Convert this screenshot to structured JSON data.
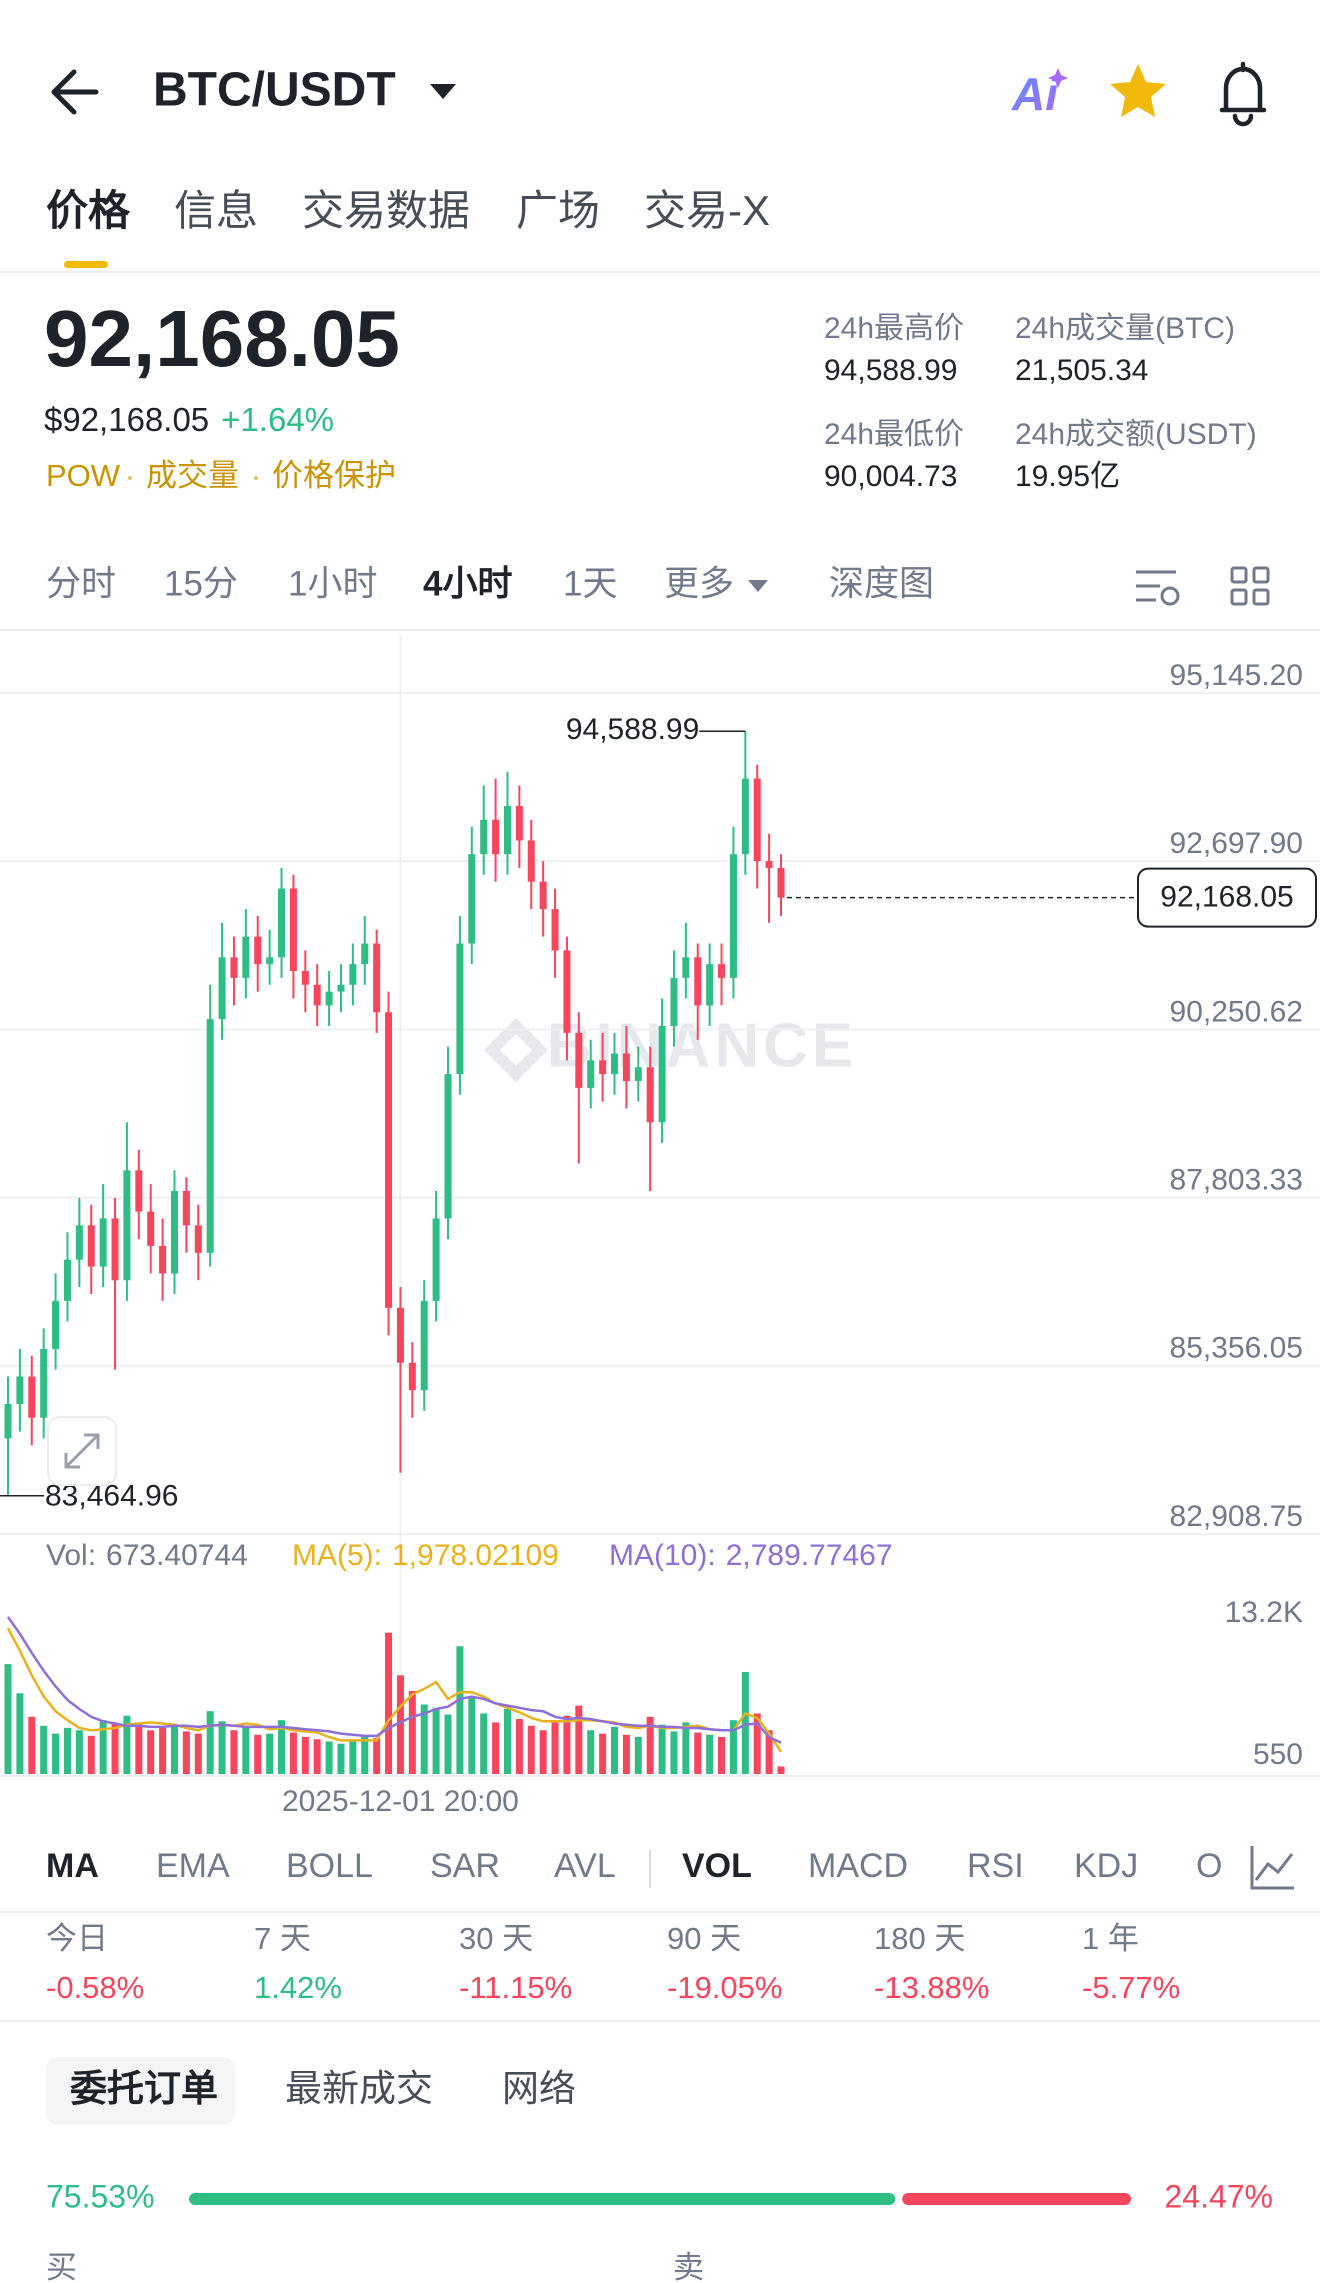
{
  "header": {
    "pair": "BTC/USDT",
    "ai": "Ai"
  },
  "tabs": [
    "价格",
    "信息",
    "交易数据",
    "广场",
    "交易-X"
  ],
  "price": {
    "last": "92,168.05",
    "usd": "$92,168.05",
    "change": "+1.64%",
    "tags": [
      "POW",
      "成交量",
      "价格保护"
    ]
  },
  "stats": [
    {
      "label": "24h最高价",
      "value": "94,588.99"
    },
    {
      "label": "24h成交量(BTC)",
      "value": "21,505.34"
    },
    {
      "label": "24h最低价",
      "value": "90,004.73"
    },
    {
      "label": "24h成交额(USDT)",
      "value": "19.95亿"
    }
  ],
  "intervals": [
    "分时",
    "15分",
    "1小时",
    "4小时",
    "1天",
    "更多"
  ],
  "depth": "深度图",
  "chart_data": [
    {
      "type": "candlestick",
      "categories": [
        null,
        null,
        null,
        null,
        null,
        null,
        null,
        null,
        null,
        null,
        null,
        null,
        null,
        null,
        null,
        null,
        null,
        null,
        null,
        null,
        null,
        null,
        null,
        null,
        null,
        null,
        null,
        null,
        null,
        null,
        null,
        null,
        null,
        "2025-12-01 20:00",
        null,
        null,
        null,
        null,
        null,
        null,
        null,
        null,
        null,
        null,
        null,
        null,
        null,
        null,
        null,
        null,
        null,
        null,
        null,
        null,
        null,
        null,
        null,
        null,
        null,
        null,
        null,
        null,
        null,
        null,
        null,
        null
      ],
      "open": [
        84300,
        84800,
        85200,
        84600,
        85600,
        86300,
        86900,
        87400,
        86800,
        87500,
        86600,
        88200,
        87600,
        87100,
        86700,
        87900,
        87400,
        87000,
        90400,
        91300,
        91000,
        91600,
        91200,
        91300,
        92300,
        91100,
        90900,
        90600,
        90800,
        90900,
        91200,
        91500,
        90500,
        86200,
        85400,
        85000,
        86300,
        87500,
        89600,
        91500,
        92800,
        93300,
        92800,
        93500,
        93000,
        92400,
        92000,
        91400,
        90200,
        89400,
        89800,
        89600,
        89900,
        89500,
        89700,
        88900,
        90300,
        91000,
        91300,
        90600,
        91200,
        91000,
        92800,
        93900,
        92700,
        92600
      ],
      "high": [
        85200,
        85600,
        85500,
        85900,
        86700,
        87300,
        87800,
        87700,
        88000,
        87800,
        88900,
        88500,
        88000,
        87500,
        88200,
        88100,
        87700,
        90900,
        91800,
        91600,
        92000,
        91900,
        91700,
        92600,
        92500,
        91400,
        91200,
        91100,
        91200,
        91500,
        91900,
        91700,
        90800,
        86500,
        85700,
        86600,
        87900,
        90000,
        91900,
        93200,
        93800,
        93900,
        94000,
        93800,
        93300,
        92700,
        92300,
        91600,
        90500,
        90100,
        90200,
        90200,
        90300,
        90000,
        90000,
        90700,
        91400,
        91800,
        91500,
        91500,
        91500,
        93200,
        94588.99,
        94100,
        93100,
        92800
      ],
      "low": [
        83464.96,
        84400,
        84200,
        84300,
        85300,
        86000,
        86500,
        86400,
        86500,
        85300,
        86300,
        87200,
        86700,
        86300,
        86400,
        87000,
        86600,
        86800,
        90100,
        90600,
        90700,
        90800,
        90900,
        91000,
        90700,
        90500,
        90300,
        90300,
        90500,
        90600,
        90900,
        90200,
        85800,
        83800,
        84600,
        84700,
        86000,
        87200,
        89300,
        91200,
        92500,
        92400,
        92500,
        92600,
        92000,
        91600,
        91000,
        89800,
        88300,
        89100,
        89200,
        89300,
        89100,
        89200,
        87900,
        88600,
        90000,
        90700,
        90100,
        90300,
        90600,
        90700,
        92500,
        92300,
        91800,
        91900
      ],
      "close": [
        84800,
        85200,
        84600,
        85600,
        86300,
        86900,
        87400,
        86800,
        87500,
        86600,
        88200,
        87600,
        87100,
        86700,
        87900,
        87400,
        87000,
        90400,
        91300,
        91000,
        91600,
        91200,
        91300,
        92300,
        91100,
        90900,
        90600,
        90800,
        90900,
        91200,
        91500,
        90500,
        86200,
        85400,
        85000,
        86300,
        87500,
        89600,
        91500,
        92800,
        93300,
        92800,
        93500,
        93000,
        92400,
        92000,
        91400,
        90200,
        89400,
        89800,
        89600,
        89900,
        89500,
        89700,
        88900,
        90300,
        91000,
        91300,
        90600,
        91200,
        91000,
        92800,
        93900,
        92700,
        92600,
        92168.05
      ],
      "colors": {
        "up": "#2EBD85",
        "down": "#F6465D"
      },
      "ylim": [
        82908.75,
        95145.2
      ],
      "yticks": [
        {
          "value": 95145.2,
          "label": "95,145.20"
        },
        {
          "value": 92697.9,
          "label": "92,697.90"
        },
        {
          "value": 90250.62,
          "label": "90,250.62"
        },
        {
          "value": 87803.33,
          "label": "87,803.33"
        },
        {
          "value": 85356.05,
          "label": "85,356.05"
        },
        {
          "value": 82908.75,
          "label": "82,908.75"
        }
      ],
      "annotations": [
        {
          "value": 94588.99,
          "label": "94,588.99"
        },
        {
          "value": 83464.96,
          "label": "83,464.96"
        }
      ],
      "last_price": {
        "value": 92168.05,
        "label": "92,168.05"
      },
      "grid": true,
      "watermark": "BINANCE"
    },
    {
      "type": "bar",
      "series": [
        {
          "name": "Vol:",
          "values": [
            9800,
            7200,
            5100,
            4300,
            3600,
            4100,
            3900,
            3400,
            4800,
            4500,
            5200,
            4600,
            3900,
            4100,
            4400,
            3800,
            3600,
            5600,
            4700,
            3900,
            4200,
            3500,
            3600,
            4800,
            3700,
            3300,
            3100,
            2900,
            2700,
            3000,
            3400,
            3200,
            12600,
            8800,
            7400,
            6200,
            5900,
            5300,
            11400,
            6800,
            5400,
            4600,
            5800,
            4900,
            4300,
            3900,
            4700,
            5200,
            6100,
            3900,
            3600,
            4200,
            3500,
            3300,
            5100,
            4400,
            3800,
            4600,
            3700,
            3500,
            3300,
            4800,
            9100,
            5400,
            3900,
            673.40744
          ],
          "latest_label": "673.40744",
          "color": "#707A8A"
        },
        {
          "name": "MA(5):",
          "type": "line",
          "color": "#E8B21E",
          "values": [
            13000,
            11000,
            8800,
            6900,
            5600,
            4800,
            4100,
            3900,
            4000,
            4100,
            4400,
            4500,
            4600,
            4500,
            4400,
            4100,
            3900,
            4300,
            4400,
            4300,
            4500,
            4400,
            4000,
            4100,
            3900,
            3800,
            3700,
            3300,
            3000,
            3000,
            3000,
            3000,
            4800,
            6000,
            7100,
            7600,
            8200,
            6700,
            7300,
            7300,
            6900,
            6300,
            5900,
            5500,
            5000,
            4700,
            4700,
            4700,
            4800,
            4800,
            4700,
            4600,
            4200,
            4100,
            4300,
            4100,
            4100,
            4200,
            4300,
            4000,
            3900,
            3900,
            5400,
            5000,
            3600,
            1978.02109
          ],
          "latest_label": "1,978.02109"
        },
        {
          "name": "MA(10):",
          "type": "line",
          "color": "#8F6FD6",
          "values": [
            14000,
            12500,
            10800,
            9200,
            7800,
            6600,
            5800,
            5100,
            4700,
            4500,
            4300,
            4300,
            4200,
            4200,
            4300,
            4300,
            4200,
            4300,
            4400,
            4300,
            4200,
            4200,
            4200,
            4200,
            4100,
            4000,
            3900,
            3800,
            3600,
            3500,
            3400,
            3400,
            4100,
            4600,
            5100,
            5400,
            5800,
            6000,
            6700,
            6900,
            6700,
            6300,
            6100,
            5900,
            5700,
            5600,
            5100,
            4900,
            5000,
            4900,
            4700,
            4500,
            4400,
            4300,
            4300,
            4200,
            4200,
            4100,
            4100,
            4000,
            3900,
            3900,
            4400,
            4500,
            3300,
            2789.77467
          ],
          "latest_label": "2,789.77467"
        }
      ],
      "ylim": [
        0,
        13200
      ],
      "yticks": [
        {
          "value": 13200,
          "label": "13.2K"
        },
        550
      ]
    }
  ],
  "indicators": [
    "MA",
    "EMA",
    "BOLL",
    "SAR",
    "AVL",
    "VOL",
    "MACD",
    "RSI",
    "KDJ",
    "O"
  ],
  "performance": [
    {
      "period": "今日",
      "change": "-0.58%"
    },
    {
      "period": "7 天",
      "change": "1.42%"
    },
    {
      "period": "30 天",
      "change": "-11.15%"
    },
    {
      "period": "90 天",
      "change": "-19.05%"
    },
    {
      "period": "180 天",
      "change": "-13.88%"
    },
    {
      "period": "1 年",
      "change": "-5.77%"
    }
  ],
  "order_tabs": [
    "委托订单",
    "最新成交",
    "网络"
  ],
  "ratio": {
    "buy": 75.53,
    "sell": 24.47,
    "buy_label": "75.53%",
    "sell_label": "24.47%"
  },
  "sides": {
    "buy": "买",
    "sell": "卖"
  }
}
